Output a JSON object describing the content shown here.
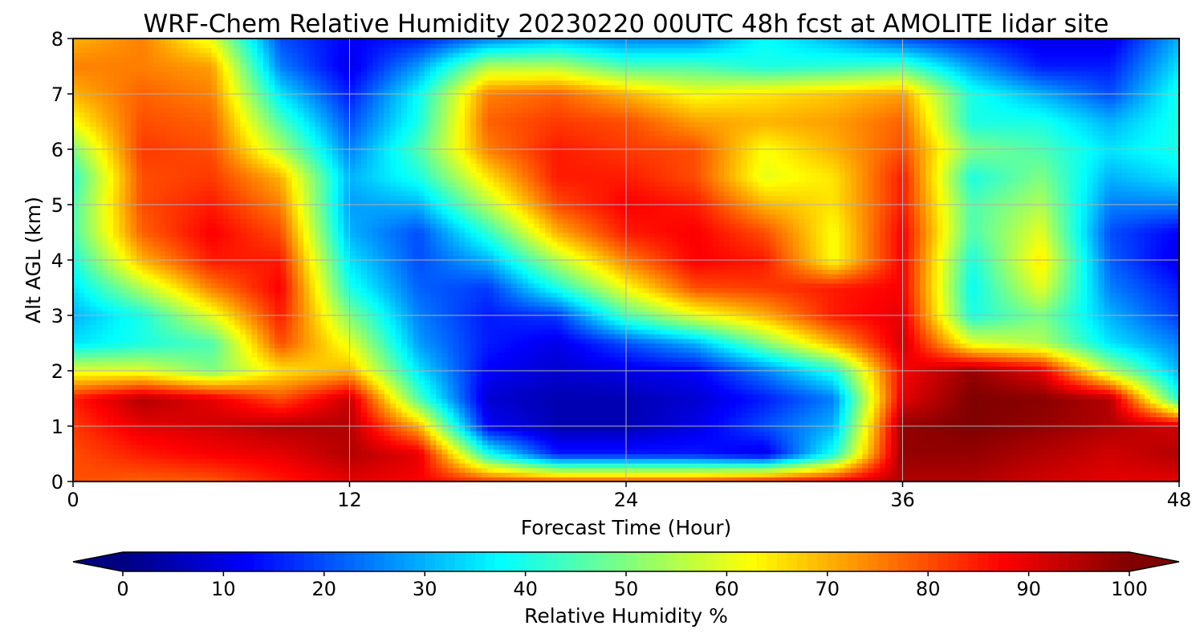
{
  "chart_data": {
    "type": "heatmap",
    "title": "WRF-Chem Relative Humidity 20230220 00UTC 48h fcst at AMOLITE lidar site",
    "xlabel": "Forecast Time (Hour)",
    "ylabel": "Alt AGL (km)",
    "xlim": [
      0,
      48
    ],
    "ylim": [
      0,
      8
    ],
    "xticks": [
      0,
      12,
      24,
      36,
      48
    ],
    "yticks": [
      0,
      1,
      2,
      3,
      4,
      5,
      6,
      7,
      8
    ],
    "grid": true,
    "colormap": "jet",
    "colorbar": {
      "label": "Relative Humidity %",
      "range": [
        0,
        100
      ],
      "ticks": [
        0,
        10,
        20,
        30,
        40,
        50,
        60,
        70,
        80,
        90,
        100
      ],
      "orientation": "horizontal",
      "extend": "both",
      "placement": "bottom"
    },
    "x": [
      0,
      3,
      6,
      9,
      12,
      15,
      18,
      21,
      24,
      27,
      30,
      33,
      36,
      39,
      42,
      45,
      48
    ],
    "y": [
      0,
      0.5,
      1,
      1.5,
      2,
      2.5,
      3,
      3.5,
      4,
      4.5,
      5,
      5.5,
      6,
      6.5,
      7,
      7.5,
      8
    ],
    "z": [
      [
        80,
        78,
        79,
        85,
        90,
        88,
        82,
        80,
        80,
        80,
        85,
        88,
        95,
        95,
        92,
        90,
        90
      ],
      [
        80,
        85,
        88,
        90,
        95,
        90,
        40,
        15,
        15,
        15,
        10,
        40,
        98,
        98,
        95,
        92,
        95
      ],
      [
        82,
        90,
        92,
        95,
        95,
        70,
        12,
        5,
        5,
        10,
        20,
        30,
        98,
        100,
        98,
        95,
        92
      ],
      [
        85,
        95,
        90,
        80,
        93,
        45,
        8,
        5,
        5,
        8,
        15,
        25,
        90,
        100,
        99,
        95,
        40
      ],
      [
        60,
        60,
        50,
        65,
        70,
        35,
        12,
        8,
        10,
        12,
        25,
        40,
        88,
        98,
        90,
        55,
        30
      ],
      [
        35,
        40,
        45,
        80,
        60,
        28,
        15,
        10,
        20,
        30,
        50,
        70,
        92,
        60,
        55,
        35,
        25
      ],
      [
        30,
        40,
        60,
        85,
        50,
        25,
        15,
        18,
        45,
        60,
        70,
        85,
        90,
        40,
        50,
        30,
        18
      ],
      [
        35,
        55,
        75,
        88,
        40,
        22,
        18,
        40,
        62,
        80,
        82,
        85,
        88,
        38,
        60,
        25,
        15
      ],
      [
        40,
        70,
        85,
        85,
        35,
        20,
        30,
        55,
        75,
        88,
        85,
        62,
        88,
        40,
        65,
        22,
        10
      ],
      [
        45,
        78,
        88,
        80,
        30,
        20,
        42,
        70,
        85,
        88,
        80,
        62,
        88,
        45,
        60,
        20,
        12
      ],
      [
        45,
        80,
        85,
        75,
        28,
        30,
        55,
        80,
        88,
        85,
        70,
        65,
        85,
        45,
        55,
        25,
        25
      ],
      [
        42,
        80,
        82,
        70,
        30,
        40,
        65,
        85,
        85,
        80,
        60,
        65,
        85,
        40,
        50,
        30,
        35
      ],
      [
        50,
        82,
        80,
        55,
        25,
        45,
        75,
        85,
        82,
        80,
        62,
        70,
        80,
        50,
        45,
        35,
        40
      ],
      [
        62,
        80,
        78,
        45,
        20,
        40,
        78,
        82,
        80,
        72,
        70,
        72,
        78,
        40,
        40,
        30,
        40
      ],
      [
        70,
        78,
        75,
        35,
        15,
        38,
        75,
        78,
        70,
        62,
        65,
        68,
        72,
        40,
        30,
        20,
        40
      ],
      [
        75,
        75,
        72,
        25,
        10,
        28,
        55,
        55,
        45,
        45,
        40,
        42,
        45,
        28,
        15,
        15,
        35
      ],
      [
        70,
        75,
        60,
        20,
        12,
        15,
        25,
        30,
        25,
        25,
        38,
        30,
        20,
        15,
        10,
        10,
        30
      ]
    ]
  }
}
